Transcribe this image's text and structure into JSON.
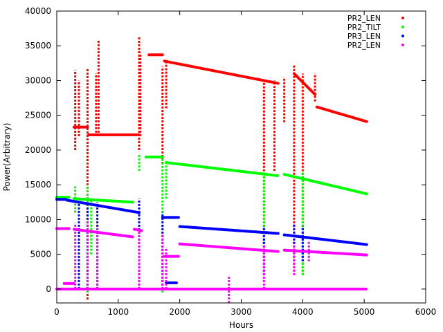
{
  "chart_data": {
    "type": "scatter",
    "title": "",
    "xlabel": "Hours",
    "ylabel": "Power(Arbitrary)",
    "xlim": [
      0,
      6000
    ],
    "ylim": [
      -2000,
      40000
    ],
    "xticks": [
      0,
      1000,
      2000,
      3000,
      4000,
      5000,
      6000
    ],
    "yticks": [
      0,
      5000,
      10000,
      15000,
      20000,
      25000,
      30000,
      35000,
      40000
    ],
    "grid": false,
    "legend_position": "top-right",
    "series": [
      {
        "name": "PR2_LEN",
        "color": "#ff0000",
        "segments": [
          {
            "x": [
              280,
              500
            ],
            "y": [
              23300,
              23300
            ]
          },
          {
            "x": [
              520,
              1340
            ],
            "y": [
              22200,
              22200
            ]
          },
          {
            "x": [
              1500,
              1720
            ],
            "y": [
              33700,
              33700
            ]
          },
          {
            "x": [
              1750,
              3600
            ],
            "y": [
              32800,
              29600
            ]
          },
          {
            "x": [
              3860,
              4200
            ],
            "y": [
              31000,
              28000
            ]
          },
          {
            "x": [
              4230,
              5040
            ],
            "y": [
              26200,
              24100
            ]
          }
        ],
        "spikes": [
          {
            "x": 300,
            "y": [
              20000,
              31500
            ]
          },
          {
            "x": 360,
            "y": [
              22000,
              30000
            ]
          },
          {
            "x": 500,
            "y": [
              -1500,
              31800
            ]
          },
          {
            "x": 640,
            "y": [
              22000,
              31000
            ]
          },
          {
            "x": 680,
            "y": [
              22000,
              35800
            ]
          },
          {
            "x": 1340,
            "y": [
              20000,
              36300
            ]
          },
          {
            "x": 1360,
            "y": [
              22000,
              34000
            ]
          },
          {
            "x": 1720,
            "y": [
              18000,
              32000
            ]
          },
          {
            "x": 1780,
            "y": [
              26000,
              33000
            ]
          },
          {
            "x": 3370,
            "y": [
              4000,
              30000
            ]
          },
          {
            "x": 3540,
            "y": [
              17000,
              30000
            ]
          },
          {
            "x": 3700,
            "y": [
              24000,
              30500
            ]
          },
          {
            "x": 3860,
            "y": [
              2000,
              32300
            ]
          },
          {
            "x": 4000,
            "y": [
              2000,
              31000
            ]
          },
          {
            "x": 4200,
            "y": [
              27000,
              31000
            ]
          }
        ]
      },
      {
        "name": "PR2_TILT",
        "color": "#00ff00",
        "segments": [
          {
            "x": [
              0,
              200
            ],
            "y": [
              13200,
              13200
            ]
          },
          {
            "x": [
              280,
              1240
            ],
            "y": [
              13000,
              12500
            ]
          },
          {
            "x": [
              1450,
              1720
            ],
            "y": [
              19000,
              19000
            ]
          },
          {
            "x": [
              1780,
              3600
            ],
            "y": [
              18200,
              16300
            ]
          },
          {
            "x": [
              3700,
              5040
            ],
            "y": [
              16500,
              13700
            ]
          }
        ],
        "spikes": [
          {
            "x": 300,
            "y": [
              11000,
              14800
            ]
          },
          {
            "x": 500,
            "y": [
              -500,
              15000
            ]
          },
          {
            "x": 560,
            "y": [
              5000,
              13000
            ]
          },
          {
            "x": 1340,
            "y": [
              17000,
              19500
            ]
          },
          {
            "x": 1720,
            "y": [
              -500,
              19000
            ]
          },
          {
            "x": 1780,
            "y": [
              13000,
              18500
            ]
          },
          {
            "x": 3370,
            "y": [
              2000,
              17000
            ]
          },
          {
            "x": 4000,
            "y": [
              2000,
              17000
            ]
          }
        ]
      },
      {
        "name": "PR3_LEN",
        "color": "#0000ff",
        "segments": [
          {
            "x": [
              0,
              150
            ],
            "y": [
              12900,
              12900
            ]
          },
          {
            "x": [
              160,
              1340
            ],
            "y": [
              12800,
              11000
            ]
          },
          {
            "x": [
              1720,
              1980
            ],
            "y": [
              10300,
              10300
            ]
          },
          {
            "x": [
              2000,
              3600
            ],
            "y": [
              9000,
              8000
            ]
          },
          {
            "x": [
              3700,
              5040
            ],
            "y": [
              7800,
              6400
            ]
          },
          {
            "x": [
              1780,
              1960
            ],
            "y": [
              900,
              900
            ]
          }
        ],
        "spikes": [
          {
            "x": 360,
            "y": [
              0,
              12500
            ]
          },
          {
            "x": 500,
            "y": [
              0,
              12000
            ]
          },
          {
            "x": 660,
            "y": [
              0,
              12500
            ]
          },
          {
            "x": 1340,
            "y": [
              0,
              13000
            ]
          },
          {
            "x": 1720,
            "y": [
              500,
              11000
            ]
          },
          {
            "x": 3370,
            "y": [
              2000,
              9000
            ]
          },
          {
            "x": 3860,
            "y": [
              4000,
              9500
            ]
          },
          {
            "x": 4000,
            "y": [
              4000,
              9000
            ]
          }
        ]
      },
      {
        "name": "PR2_LEN",
        "color": "#ff00ff",
        "segments": [
          {
            "x": [
              0,
              200
            ],
            "y": [
              8700,
              8700
            ]
          },
          {
            "x": [
              280,
              1240
            ],
            "y": [
              8600,
              7500
            ]
          },
          {
            "x": [
              1260,
              1380
            ],
            "y": [
              8600,
              8400
            ]
          },
          {
            "x": [
              1750,
              1980
            ],
            "y": [
              4700,
              4700
            ]
          },
          {
            "x": [
              2000,
              3600
            ],
            "y": [
              6500,
              5400
            ]
          },
          {
            "x": [
              3700,
              5040
            ],
            "y": [
              5600,
              4900
            ]
          },
          {
            "x": [
              0,
              5040
            ],
            "y": [
              0,
              0
            ]
          },
          {
            "x": [
              120,
              280
            ],
            "y": [
              800,
              800
            ]
          }
        ],
        "spikes": [
          {
            "x": 300,
            "y": [
              0,
              9500
            ]
          },
          {
            "x": 500,
            "y": [
              0,
              10000
            ]
          },
          {
            "x": 660,
            "y": [
              0,
              9000
            ]
          },
          {
            "x": 1340,
            "y": [
              0,
              8500
            ]
          },
          {
            "x": 1720,
            "y": [
              0,
              8000
            ]
          },
          {
            "x": 1780,
            "y": [
              0,
              6000
            ]
          },
          {
            "x": 2800,
            "y": [
              -2000,
              2000
            ]
          },
          {
            "x": 3370,
            "y": [
              0,
              6500
            ]
          },
          {
            "x": 3860,
            "y": [
              2000,
              6500
            ]
          },
          {
            "x": 4100,
            "y": [
              4000,
              7000
            ]
          }
        ]
      }
    ]
  }
}
